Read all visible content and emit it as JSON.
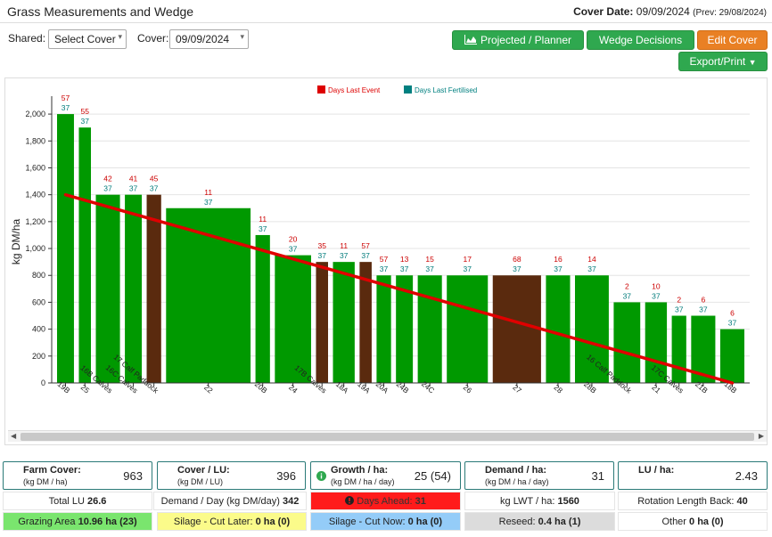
{
  "header": {
    "title": "Grass Measurements and Wedge",
    "cover_date_label": "Cover Date:",
    "cover_date_value": "09/09/2024",
    "prev": "(Prev: 29/08/2024)"
  },
  "controls": {
    "shared_label": "Shared:",
    "shared_value": "Select Cover",
    "cover_label": "Cover:",
    "cover_value": "09/09/2024",
    "btn_projected": "Projected / Planner",
    "btn_wedge": "Wedge Decisions",
    "btn_edit": "Edit Cover",
    "btn_export": "Export/Print"
  },
  "colors": {
    "green": "#009900",
    "brown": "#5a2a0e",
    "trend": "#e00000",
    "last_event": "#cc0000",
    "last_fert": "#007b7b"
  },
  "chart_data": {
    "type": "bar",
    "legend": [
      {
        "name": "Days Last Event",
        "color": "#dd0000"
      },
      {
        "name": "Days Last Fertilised",
        "color": "#008080"
      }
    ],
    "ylabel": "kg DM/ha",
    "ylim": [
      0,
      2100
    ],
    "yticks": [
      0,
      200,
      400,
      600,
      800,
      1000,
      1200,
      1400,
      1600,
      1800,
      2000
    ],
    "ytick_labels": [
      "0",
      "200",
      "400",
      "600",
      "800",
      "1,000",
      "1,200",
      "1,400",
      "1,600",
      "1,800",
      "2,000"
    ],
    "trend_line": {
      "start": 1400,
      "end": 0
    },
    "bars": [
      {
        "name": "19B",
        "value": 2000,
        "area": 0.7,
        "last_event": "57",
        "last_fert": "37",
        "brown": false
      },
      {
        "name": "25",
        "value": 1900,
        "area": 0.5,
        "last_event": "55",
        "last_fert": "37",
        "brown": false
      },
      {
        "name": "16B Calves",
        "value": 1400,
        "area": 1.0,
        "last_event": "42",
        "last_fert": "37",
        "brown": false
      },
      {
        "name": "16C Calves",
        "value": 1400,
        "area": 0.7,
        "last_event": "41",
        "last_fert": "37",
        "brown": false
      },
      {
        "name": "17 Calf Paddock",
        "value": 1400,
        "area": 0.6,
        "last_event": "45",
        "last_fert": "37",
        "brown": true
      },
      {
        "name": "22",
        "value": 1300,
        "area": 3.5,
        "last_event": "11",
        "last_fert": "37",
        "brown": false
      },
      {
        "name": "20B",
        "value": 1100,
        "area": 0.6,
        "last_event": "11",
        "last_fert": "37",
        "brown": false
      },
      {
        "name": "24",
        "value": 950,
        "area": 1.5,
        "last_event": "20",
        "last_fert": "37",
        "brown": false
      },
      {
        "name": "17B Calves",
        "value": 900,
        "area": 0.5,
        "last_event": "35",
        "last_fert": "37",
        "brown": true
      },
      {
        "name": "18A",
        "value": 900,
        "area": 0.9,
        "last_event": "11",
        "last_fert": "37",
        "brown": false
      },
      {
        "name": "19A",
        "value": 900,
        "area": 0.5,
        "last_event": "57",
        "last_fert": "37",
        "brown": true
      },
      {
        "name": "20A",
        "value": 800,
        "area": 0.6,
        "last_event": "57",
        "last_fert": "37",
        "brown": false
      },
      {
        "name": "24B",
        "value": 800,
        "area": 0.7,
        "last_event": "13",
        "last_fert": "37",
        "brown": false
      },
      {
        "name": "24C",
        "value": 800,
        "area": 1.0,
        "last_event": "15",
        "last_fert": "37",
        "brown": false
      },
      {
        "name": "26",
        "value": 800,
        "area": 1.7,
        "last_event": "17",
        "last_fert": "37",
        "brown": false
      },
      {
        "name": "27",
        "value": 800,
        "area": 2.0,
        "last_event": "68",
        "last_fert": "37",
        "brown": true
      },
      {
        "name": "28",
        "value": 800,
        "area": 1.0,
        "last_event": "16",
        "last_fert": "37",
        "brown": false
      },
      {
        "name": "28B",
        "value": 800,
        "area": 1.4,
        "last_event": "14",
        "last_fert": "37",
        "brown": false
      },
      {
        "name": "16 Calf Paddock",
        "value": 600,
        "area": 1.1,
        "last_event": "2",
        "last_fert": "37",
        "brown": false
      },
      {
        "name": "21",
        "value": 600,
        "area": 0.9,
        "last_event": "10",
        "last_fert": "37",
        "brown": false
      },
      {
        "name": "17C Calves",
        "value": 500,
        "area": 0.6,
        "last_event": "2",
        "last_fert": "37",
        "brown": false
      },
      {
        "name": "21B",
        "value": 500,
        "area": 1.0,
        "last_event": "6",
        "last_fert": "37",
        "brown": false
      },
      {
        "name": "18B",
        "value": 400,
        "area": 1.0,
        "last_event": "6",
        "last_fert": "37",
        "brown": false
      }
    ]
  },
  "stats": {
    "farm_cover": {
      "title": "Farm Cover:",
      "sub": "(kg DM / ha)",
      "value": "963"
    },
    "cover_lu": {
      "title": "Cover / LU:",
      "sub": "(kg DM / LU)",
      "value": "396"
    },
    "growth": {
      "title": "Growth / ha:",
      "sub": "(kg DM / ha / day)",
      "value": "25 (54)"
    },
    "demand": {
      "title": "Demand / ha:",
      "sub": "(kg DM / ha / day)",
      "value": "31"
    },
    "lu_ha": {
      "title": "LU / ha:",
      "value": "2.43"
    }
  },
  "row1": {
    "total_lu_label": "Total LU",
    "total_lu_value": "26.6",
    "demand_day_label": "Demand / Day (kg DM/day)",
    "demand_day_value": "342",
    "days_ahead_label": "Days Ahead:",
    "days_ahead_value": "31",
    "lwt_label": "kg LWT / ha:",
    "lwt_value": "1560",
    "rotation_label": "Rotation Length Back:",
    "rotation_value": "40"
  },
  "row2": {
    "grazing_label": "Grazing Area",
    "grazing_value": "10.96 ha (23)",
    "silage_later_label": "Silage - Cut Later:",
    "silage_later_value": "0 ha (0)",
    "silage_now_label": "Silage - Cut Now:",
    "silage_now_value": "0 ha (0)",
    "reseed_label": "Reseed:",
    "reseed_value": "0.4 ha (1)",
    "other_label": "Other",
    "other_value": "0 ha (0)"
  }
}
